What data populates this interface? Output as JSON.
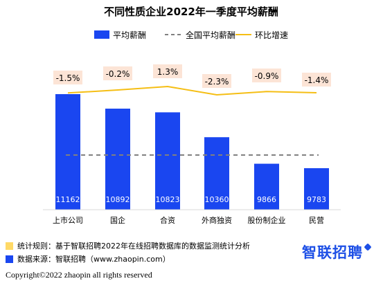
{
  "chart_data": {
    "type": "bar",
    "title": "不同性质企业2022年一季度平均薪酬",
    "categories": [
      "上市公司",
      "国企",
      "合资",
      "外商独资",
      "股份制企业",
      "民营"
    ],
    "series": [
      {
        "name": "平均薪酬",
        "type": "bar",
        "values": [
          11162,
          10892,
          10823,
          10360,
          9866,
          9783
        ],
        "color": "#1A46F0"
      },
      {
        "name": "全国平均薪酬",
        "type": "dashed-line",
        "color": "#808080"
      },
      {
        "name": "环比增速",
        "type": "line",
        "values_label": [
          "-1.5%",
          "-0.2%",
          "1.3%",
          "-2.3%",
          "-0.9%",
          "-1.4%"
        ],
        "values": [
          -1.5,
          -0.2,
          1.3,
          -2.3,
          -0.9,
          -1.4
        ],
        "color": "#F5BE14"
      }
    ],
    "grid": false,
    "legend_position": "top"
  },
  "footer": {
    "rule_label": "统计规则：基于智联招聘2022年在线招聘数据库的数据监测统计分析",
    "source_label": "数据来源：智联招聘（www.zhaopin.com）",
    "rule_color": "#FFD966",
    "source_color": "#1A46F0"
  },
  "copyright": "Copyright©2022 zhaopin all rights reserved",
  "brand": "智联招聘"
}
